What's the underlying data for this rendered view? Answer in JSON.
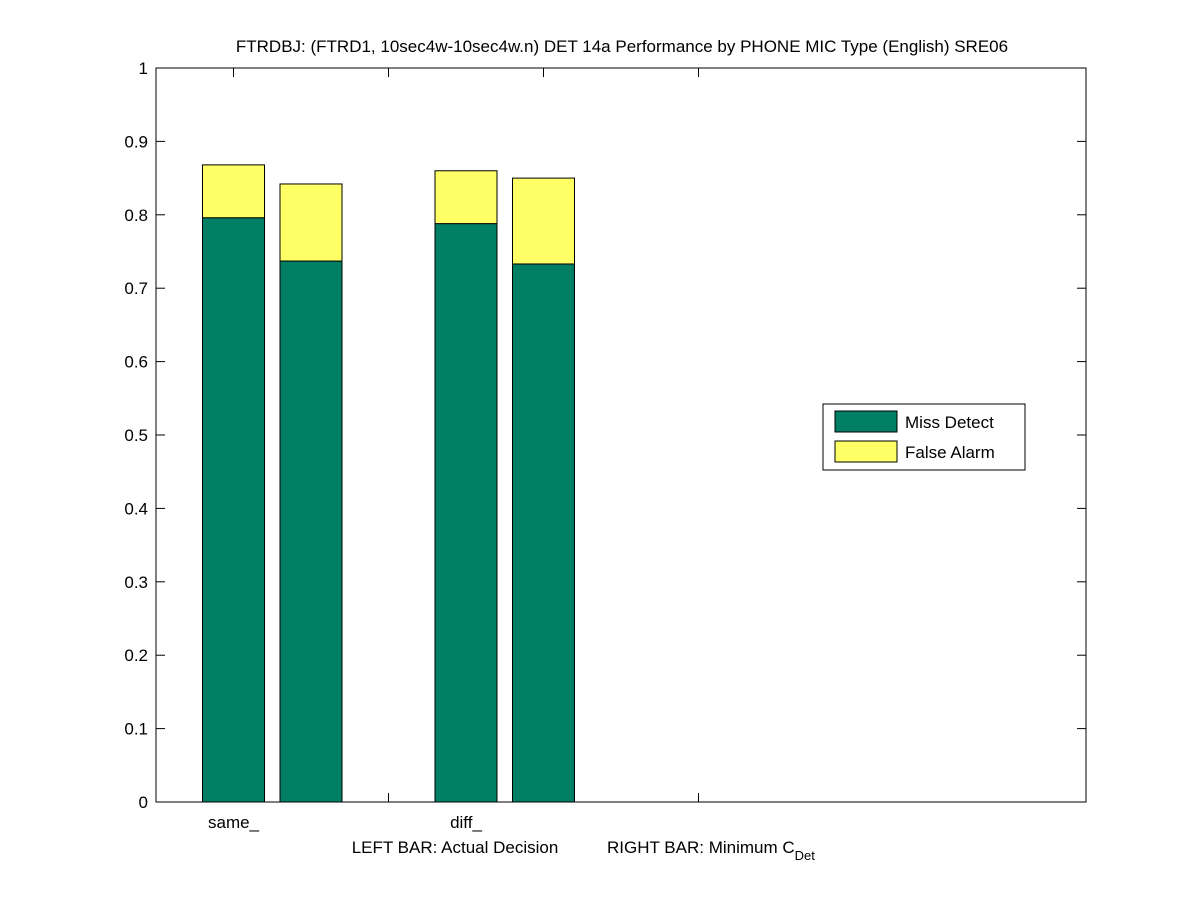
{
  "chart_data": {
    "type": "bar",
    "stacked": true,
    "title": "FTRDBJ: (FTRD1, 10sec4w-10sec4w.n) DET 14a Performance by PHONE MIC Type (English) SRE06",
    "xlabel_left": "LEFT BAR: Actual Decision",
    "xlabel_right_main": "RIGHT BAR: Minimum C",
    "xlabel_right_sub": "Det",
    "categories": [
      "same_",
      "diff_"
    ],
    "bar_roles": [
      "Actual Decision",
      "Minimum C_Det"
    ],
    "series": [
      {
        "name": "Miss Detect",
        "color": "#007f64",
        "values": [
          [
            0.796,
            0.737
          ],
          [
            0.788,
            0.733
          ]
        ]
      },
      {
        "name": "False Alarm",
        "color": "#ffff66",
        "values": [
          [
            0.072,
            0.105
          ],
          [
            0.072,
            0.117
          ]
        ]
      }
    ],
    "ylim": [
      0,
      1
    ],
    "yticks": [
      "0",
      "0.1",
      "0.2",
      "0.3",
      "0.4",
      "0.5",
      "0.6",
      "0.7",
      "0.8",
      "0.9",
      "1"
    ],
    "xlim": [
      0,
      12
    ],
    "xtick_positions": [
      1,
      3,
      5,
      7
    ],
    "grid": false,
    "legend_position": "right"
  }
}
